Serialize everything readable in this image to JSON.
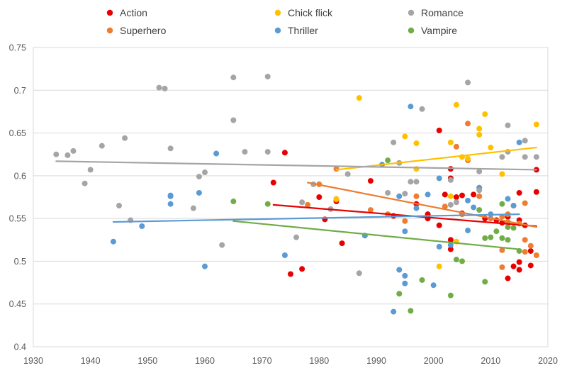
{
  "chart_data": {
    "type": "scatter",
    "title": "",
    "xlabel": "",
    "ylabel": "",
    "xlim": [
      1930,
      2020
    ],
    "ylim": [
      0.4,
      0.75
    ],
    "x_ticks": [
      1930,
      1940,
      1950,
      1960,
      1970,
      1980,
      1990,
      2000,
      2010,
      2020
    ],
    "y_ticks": [
      0.4,
      0.45,
      0.5,
      0.55,
      0.6,
      0.65,
      0.7,
      0.75
    ],
    "x_tick_labels": [
      "1930",
      "1940",
      "1950",
      "1960",
      "1970",
      "1980",
      "1990",
      "2000",
      "2010",
      "2020"
    ],
    "y_tick_labels": [
      "0.4",
      "0.45",
      "0.5",
      "0.55",
      "0.6",
      "0.65",
      "0.7",
      "0.75"
    ],
    "grid": "horizontal",
    "legend_position": "top",
    "trendlines": "linear",
    "series": [
      {
        "name": "Action",
        "color": "#e60000",
        "trend": [
          [
            1972,
            0.566
          ],
          [
            2018,
            0.541
          ]
        ],
        "points": [
          [
            1972,
            0.592
          ],
          [
            1974,
            0.627
          ],
          [
            1975,
            0.485
          ],
          [
            1977,
            0.491
          ],
          [
            1980,
            0.575
          ],
          [
            1981,
            0.549
          ],
          [
            1983,
            0.57
          ],
          [
            1984,
            0.521
          ],
          [
            1989,
            0.594
          ],
          [
            1993,
            0.553
          ],
          [
            1997,
            0.567
          ],
          [
            1999,
            0.555
          ],
          [
            1999,
            0.55
          ],
          [
            2001,
            0.653
          ],
          [
            2001,
            0.542
          ],
          [
            2002,
            0.578
          ],
          [
            2003,
            0.608
          ],
          [
            2003,
            0.597
          ],
          [
            2003,
            0.525
          ],
          [
            2003,
            0.514
          ],
          [
            2004,
            0.575
          ],
          [
            2005,
            0.556
          ],
          [
            2005,
            0.577
          ],
          [
            2007,
            0.578
          ],
          [
            2009,
            0.55
          ],
          [
            2011,
            0.548
          ],
          [
            2012,
            0.545
          ],
          [
            2013,
            0.552
          ],
          [
            2013,
            0.48
          ],
          [
            2014,
            0.494
          ],
          [
            2015,
            0.58
          ],
          [
            2015,
            0.548
          ],
          [
            2015,
            0.499
          ],
          [
            2015,
            0.49
          ],
          [
            2016,
            0.542
          ],
          [
            2017,
            0.512
          ],
          [
            2017,
            0.495
          ],
          [
            2018,
            0.607
          ],
          [
            2018,
            0.581
          ]
        ]
      },
      {
        "name": "Superhero",
        "color": "#ed7d31",
        "trend": [
          [
            1978,
            0.592
          ],
          [
            2018,
            0.54
          ]
        ],
        "points": [
          [
            1978,
            0.566
          ],
          [
            1980,
            0.59
          ],
          [
            1983,
            0.608
          ],
          [
            1983,
            0.572
          ],
          [
            1989,
            0.56
          ],
          [
            1992,
            0.555
          ],
          [
            1995,
            0.547
          ],
          [
            1997,
            0.576
          ],
          [
            2002,
            0.564
          ],
          [
            2004,
            0.634
          ],
          [
            2005,
            0.555
          ],
          [
            2006,
            0.661
          ],
          [
            2006,
            0.618
          ],
          [
            2008,
            0.576
          ],
          [
            2008,
            0.586
          ],
          [
            2010,
            0.55
          ],
          [
            2012,
            0.552
          ],
          [
            2012,
            0.513
          ],
          [
            2012,
            0.493
          ],
          [
            2013,
            0.555
          ],
          [
            2013,
            0.546
          ],
          [
            2014,
            0.565
          ],
          [
            2015,
            0.544
          ],
          [
            2016,
            0.525
          ],
          [
            2016,
            0.511
          ],
          [
            2016,
            0.568
          ],
          [
            2017,
            0.518
          ],
          [
            2018,
            0.507
          ]
        ]
      },
      {
        "name": "Chick flick",
        "color": "#ffc000",
        "trend": [
          [
            1983,
            0.607
          ],
          [
            2018,
            0.633
          ]
        ],
        "points": [
          [
            1983,
            0.573
          ],
          [
            1987,
            0.691
          ],
          [
            1995,
            0.646
          ],
          [
            1997,
            0.608
          ],
          [
            1997,
            0.638
          ],
          [
            2001,
            0.494
          ],
          [
            2003,
            0.639
          ],
          [
            2003,
            0.576
          ],
          [
            2004,
            0.683
          ],
          [
            2004,
            0.523
          ],
          [
            2005,
            0.622
          ],
          [
            2006,
            0.62
          ],
          [
            2008,
            0.655
          ],
          [
            2008,
            0.648
          ],
          [
            2009,
            0.672
          ],
          [
            2010,
            0.633
          ],
          [
            2012,
            0.602
          ],
          [
            2018,
            0.66
          ]
        ]
      },
      {
        "name": "Thriller",
        "color": "#5b9bd5",
        "trend": [
          [
            1944,
            0.546
          ],
          [
            2015,
            0.555
          ]
        ],
        "points": [
          [
            1944,
            0.523
          ],
          [
            1949,
            0.541
          ],
          [
            1954,
            0.576
          ],
          [
            1954,
            0.577
          ],
          [
            1954,
            0.567
          ],
          [
            1959,
            0.58
          ],
          [
            1960,
            0.494
          ],
          [
            1962,
            0.626
          ],
          [
            1974,
            0.507
          ],
          [
            1988,
            0.53
          ],
          [
            1991,
            0.613
          ],
          [
            1993,
            0.441
          ],
          [
            1994,
            0.49
          ],
          [
            1994,
            0.576
          ],
          [
            1995,
            0.483
          ],
          [
            1995,
            0.474
          ],
          [
            1995,
            0.535
          ],
          [
            1996,
            0.681
          ],
          [
            1997,
            0.562
          ],
          [
            1999,
            0.578
          ],
          [
            2000,
            0.472
          ],
          [
            2001,
            0.597
          ],
          [
            2001,
            0.517
          ],
          [
            2003,
            0.519
          ],
          [
            2006,
            0.571
          ],
          [
            2006,
            0.536
          ],
          [
            2007,
            0.563
          ],
          [
            2008,
            0.586
          ],
          [
            2010,
            0.555
          ],
          [
            2013,
            0.573
          ],
          [
            2014,
            0.565
          ],
          [
            2015,
            0.639
          ]
        ]
      },
      {
        "name": "Romance",
        "color": "#a5a5a5",
        "trend": [
          [
            1934,
            0.617
          ],
          [
            2018,
            0.607
          ]
        ],
        "points": [
          [
            1934,
            0.625
          ],
          [
            1936,
            0.624
          ],
          [
            1937,
            0.629
          ],
          [
            1939,
            0.591
          ],
          [
            1940,
            0.607
          ],
          [
            1942,
            0.635
          ],
          [
            1945,
            0.565
          ],
          [
            1946,
            0.644
          ],
          [
            1947,
            0.548
          ],
          [
            1952,
            0.703
          ],
          [
            1953,
            0.702
          ],
          [
            1954,
            0.632
          ],
          [
            1958,
            0.562
          ],
          [
            1959,
            0.599
          ],
          [
            1960,
            0.604
          ],
          [
            1963,
            0.519
          ],
          [
            1965,
            0.715
          ],
          [
            1965,
            0.665
          ],
          [
            1967,
            0.628
          ],
          [
            1971,
            0.716
          ],
          [
            1971,
            0.628
          ],
          [
            1976,
            0.528
          ],
          [
            1977,
            0.569
          ],
          [
            1979,
            0.59
          ],
          [
            1982,
            0.561
          ],
          [
            1985,
            0.602
          ],
          [
            1987,
            0.486
          ],
          [
            1992,
            0.58
          ],
          [
            1993,
            0.639
          ],
          [
            1994,
            0.615
          ],
          [
            1995,
            0.579
          ],
          [
            1996,
            0.593
          ],
          [
            1997,
            0.593
          ],
          [
            1998,
            0.678
          ],
          [
            2003,
            0.595
          ],
          [
            2003,
            0.566
          ],
          [
            2004,
            0.569
          ],
          [
            2006,
            0.709
          ],
          [
            2008,
            0.605
          ],
          [
            2008,
            0.583
          ],
          [
            2012,
            0.622
          ],
          [
            2013,
            0.628
          ],
          [
            2013,
            0.659
          ],
          [
            2016,
            0.641
          ],
          [
            2016,
            0.622
          ],
          [
            2018,
            0.622
          ]
        ]
      },
      {
        "name": "Vampire",
        "color": "#70ad47",
        "trend": [
          [
            1965,
            0.547
          ],
          [
            2015,
            0.514
          ]
        ],
        "points": [
          [
            1965,
            0.57
          ],
          [
            1971,
            0.567
          ],
          [
            1992,
            0.618
          ],
          [
            1994,
            0.462
          ],
          [
            1996,
            0.442
          ],
          [
            1998,
            0.478
          ],
          [
            2003,
            0.46
          ],
          [
            2004,
            0.502
          ],
          [
            2005,
            0.5
          ],
          [
            2008,
            0.56
          ],
          [
            2009,
            0.527
          ],
          [
            2009,
            0.476
          ],
          [
            2010,
            0.528
          ],
          [
            2011,
            0.535
          ],
          [
            2012,
            0.527
          ],
          [
            2012,
            0.567
          ],
          [
            2013,
            0.525
          ],
          [
            2013,
            0.54
          ],
          [
            2014,
            0.539
          ],
          [
            2015,
            0.512
          ]
        ]
      }
    ]
  }
}
